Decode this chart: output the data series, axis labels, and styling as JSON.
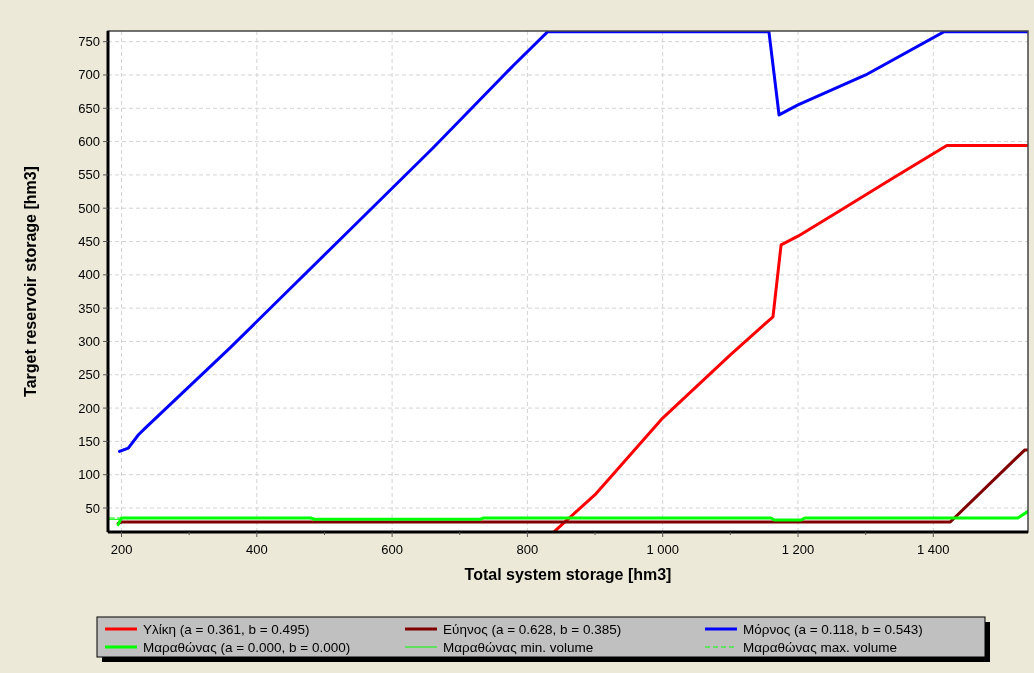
{
  "chart_data": {
    "type": "line",
    "xlabel": "Total system storage [hm3]",
    "ylabel": "Target reservoir storage [hm3]",
    "xlim": [
      180,
      1540
    ],
    "ylim": [
      14,
      766
    ],
    "xticks": [
      200,
      400,
      600,
      800,
      {
        "value": 1000,
        "label": "1 000"
      },
      {
        "value": 1200,
        "label": "1 200"
      },
      {
        "value": 1400,
        "label": "1 400"
      }
    ],
    "yticks": [
      50,
      100,
      150,
      200,
      250,
      300,
      350,
      400,
      450,
      500,
      550,
      600,
      650,
      700,
      750
    ],
    "grid": true,
    "legend": "bottom",
    "line_style": "solid",
    "series": [
      {
        "name": "Υλίκη (a = 0.361, b = 0.495)",
        "color": "#ff0000",
        "x": [
          840,
          900,
          1000,
          1100,
          1163,
          1175,
          1200,
          1260,
          1340,
          1420,
          1540
        ],
        "values": [
          15,
          70,
          185,
          280,
          337,
          445,
          458,
          495,
          545,
          594,
          594
        ]
      },
      {
        "name": "Εύηνος (a = 0.628, b = 0.385)",
        "color": "#800000",
        "x": [
          195,
          200,
          1425,
          1535,
          1540
        ],
        "values": [
          27,
          29,
          29,
          137,
          137
        ]
      },
      {
        "name": "Μόρνος (a = 0.118, b = 0.543)",
        "color": "#0000ff",
        "x": [
          197,
          210,
          225,
          235,
          360,
          540,
          660,
          780,
          830,
          1157,
          1172,
          1200,
          1300,
          1416,
          1540
        ],
        "values": [
          135,
          140,
          160,
          170,
          290,
          470,
          590,
          715,
          765,
          765,
          640,
          655,
          700,
          765,
          765
        ]
      },
      {
        "name": "Μαραθώνας (a = 0.000, b = 0.000)",
        "color": "#00ff00",
        "x": [
          195,
          200,
          205,
          480,
          485,
          730,
          735,
          1160,
          1165,
          1205,
          1210,
          1525,
          1540
        ],
        "values": [
          25,
          35,
          35,
          35,
          33,
          33,
          35,
          35,
          32,
          32,
          35,
          35,
          45
        ]
      },
      {
        "name": "Μαραθώνας min. volume",
        "color": "#00ff00",
        "x": [
          182,
          200
        ],
        "values": [
          33,
          33
        ]
      },
      {
        "name": "Μαραθώνας max. volume",
        "color": "#00ff00",
        "line_style": "dashed",
        "x": [
          182,
          200
        ],
        "values": [
          35,
          35
        ]
      }
    ]
  }
}
